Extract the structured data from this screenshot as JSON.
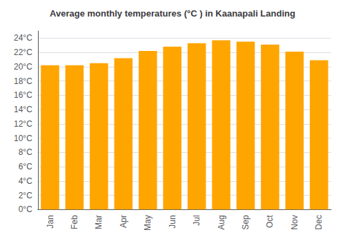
{
  "chart_data": {
    "type": "bar",
    "title": "Average monthly temperatures (°C ) in Kaanapali Landing",
    "categories": [
      "Jan",
      "Feb",
      "Mar",
      "Apr",
      "May",
      "Jun",
      "Jul",
      "Aug",
      "Sep",
      "Oct",
      "Nov",
      "Dec"
    ],
    "values": [
      20.2,
      20.2,
      20.5,
      21.2,
      22.2,
      22.8,
      23.3,
      23.7,
      23.5,
      23.1,
      22.1,
      20.9
    ],
    "color": "#FFA500",
    "ylim": [
      0,
      25
    ],
    "yticks": [
      {
        "value": 0,
        "label": "0°C"
      },
      {
        "value": 2,
        "label": "2°C"
      },
      {
        "value": 4,
        "label": "4°C"
      },
      {
        "value": 6,
        "label": "6°C"
      },
      {
        "value": 8,
        "label": "8°C"
      },
      {
        "value": 10,
        "label": "10°C"
      },
      {
        "value": 12,
        "label": "12°C"
      },
      {
        "value": 14,
        "label": "14°C"
      },
      {
        "value": 16,
        "label": "16°C"
      },
      {
        "value": 18,
        "label": "18°C"
      },
      {
        "value": 20,
        "label": "20°C"
      },
      {
        "value": 22,
        "label": "22°C"
      },
      {
        "value": 24,
        "label": "24°C"
      }
    ],
    "grid": true
  }
}
